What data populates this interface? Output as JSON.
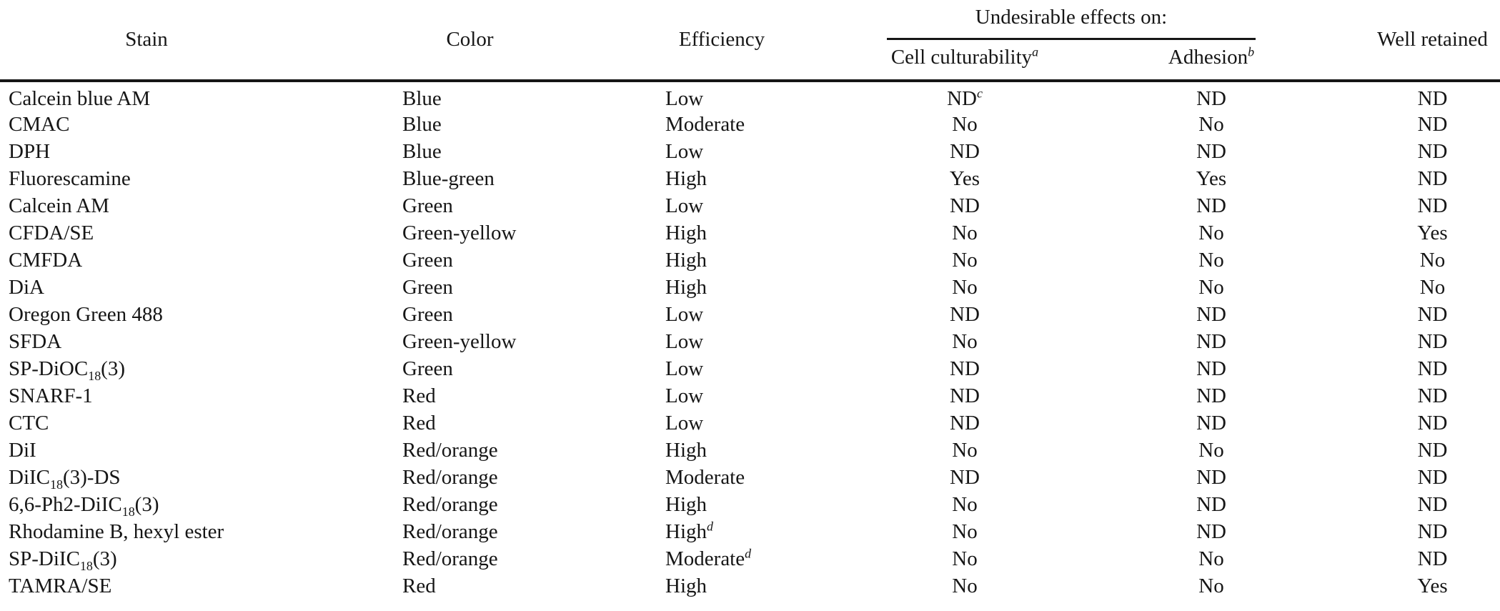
{
  "page": {
    "background_color": "#ffffff",
    "text_color": "#161616",
    "rule_color": "#161616"
  },
  "table": {
    "column_keys": [
      "stain",
      "color",
      "efficiency",
      "cell-culturability",
      "adhesion",
      "well-retained"
    ],
    "header": {
      "stain": "Stain",
      "color": "Color",
      "efficiency": "Efficiency",
      "group": "Undesirable effects on:",
      "cell_culturability": "Cell culturability^{a}",
      "adhesion": "Adhesion^{b}",
      "well_retained": "Well retained"
    },
    "rows": [
      [
        "Calcein blue AM",
        "Blue",
        "Low",
        "ND^{c}",
        "ND",
        "ND"
      ],
      [
        "CMAC",
        "Blue",
        "Moderate",
        "No",
        "No",
        "ND"
      ],
      [
        "DPH",
        "Blue",
        "Low",
        "ND",
        "ND",
        "ND"
      ],
      [
        "Fluorescamine",
        "Blue-green",
        "High",
        "Yes",
        "Yes",
        "ND"
      ],
      [
        "Calcein AM",
        "Green",
        "Low",
        "ND",
        "ND",
        "ND"
      ],
      [
        "CFDA/SE",
        "Green-yellow",
        "High",
        "No",
        "No",
        "Yes"
      ],
      [
        "CMFDA",
        "Green",
        "High",
        "No",
        "No",
        "No"
      ],
      [
        "DiA",
        "Green",
        "High",
        "No",
        "No",
        "No"
      ],
      [
        "Oregon Green 488",
        "Green",
        "Low",
        "ND",
        "ND",
        "ND"
      ],
      [
        "SFDA",
        "Green-yellow",
        "Low",
        "No",
        "ND",
        "ND"
      ],
      [
        "SP-DiOC_{18}(3)",
        "Green",
        "Low",
        "ND",
        "ND",
        "ND"
      ],
      [
        "SNARF-1",
        "Red",
        "Low",
        "ND",
        "ND",
        "ND"
      ],
      [
        "CTC",
        "Red",
        "Low",
        "ND",
        "ND",
        "ND"
      ],
      [
        "DiI",
        "Red/orange",
        "High",
        "No",
        "No",
        "ND"
      ],
      [
        "DiIC_{18}(3)-DS",
        "Red/orange",
        "Moderate",
        "ND",
        "ND",
        "ND"
      ],
      [
        "6,6-Ph2-DiIC_{18}(3)",
        "Red/orange",
        "High",
        "No",
        "ND",
        "ND"
      ],
      [
        "Rhodamine B, hexyl ester",
        "Red/orange",
        "High^{d}",
        "No",
        "ND",
        "ND"
      ],
      [
        "SP-DiIC_{18}(3)",
        "Red/orange",
        "Moderate^{d}",
        "No",
        "No",
        "ND"
      ],
      [
        "TAMRA/SE",
        "Red",
        "High",
        "No",
        "No",
        "Yes"
      ]
    ]
  }
}
